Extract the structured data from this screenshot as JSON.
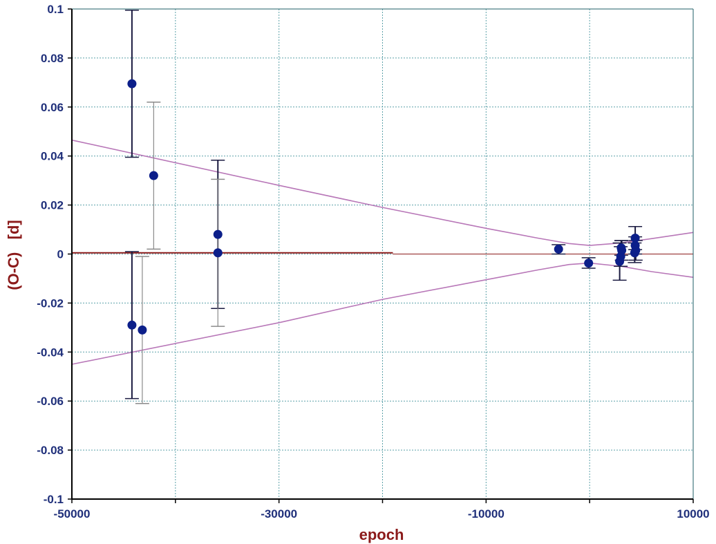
{
  "chart_data": {
    "type": "scatter",
    "xlabel": "epoch",
    "ylabel": "(O-C)   [d]",
    "xlim": [
      -50000,
      10000
    ],
    "ylim": [
      -0.1,
      0.1
    ],
    "xticks": [
      -50000,
      -40000,
      -30000,
      -20000,
      -10000,
      0,
      10000
    ],
    "xtick_labels": [
      "-50000",
      "",
      "-30000",
      "",
      "-10000",
      "",
      "10000"
    ],
    "yticks": [
      -0.1,
      -0.08,
      -0.06,
      -0.04,
      -0.02,
      0,
      0.02,
      0.04,
      0.06,
      0.08,
      0.1
    ],
    "ytick_labels": [
      "-0.1",
      "-0.08",
      "-0.06",
      "-0.04",
      "-0.02",
      "0",
      "0.02",
      "0.04",
      "0.06",
      "0.08",
      "0.1"
    ],
    "grid": true,
    "colors": {
      "points": "#0c1f8a",
      "dark_errorbars": "#1a1a40",
      "light_errorbars": "#8a8a8a",
      "envelope": "#b877b8",
      "zero_line": "#8b1a1a",
      "axis_label": "#8b1a1a",
      "tick_label": "#1f2f7a",
      "grid": "#5aa0a8"
    },
    "points": [
      {
        "x": -44200,
        "y": 0.0695,
        "err_lo": 0.0395,
        "err_hi": 0.0995,
        "bar": "dark"
      },
      {
        "x": -42100,
        "y": 0.032,
        "err_lo": 0.002,
        "err_hi": 0.062,
        "bar": "light"
      },
      {
        "x": -44200,
        "y": -0.029,
        "err_lo": -0.059,
        "err_hi": 0.001,
        "bar": "dark"
      },
      {
        "x": -43200,
        "y": -0.031,
        "err_lo": -0.061,
        "err_hi": -0.001,
        "bar": "light"
      },
      {
        "x": -35900,
        "y": 0.008,
        "err_lo": -0.0222,
        "err_hi": 0.0383,
        "bar": "dark"
      },
      {
        "x": -35900,
        "y": 0.0005,
        "err_lo": -0.0295,
        "err_hi": 0.0305,
        "bar": "light"
      },
      {
        "x": -3000,
        "y": 0.002,
        "err_lo": 0.0,
        "err_hi": 0.0038,
        "bar": "dark"
      },
      {
        "x": -100,
        "y": -0.0037,
        "err_lo": -0.0058,
        "err_hi": -0.0015,
        "bar": "dark"
      },
      {
        "x": 2900,
        "y": -0.003,
        "err_lo": -0.0107,
        "err_hi": 0.0045,
        "bar": "dark"
      },
      {
        "x": 3000,
        "y": -0.001,
        "err_lo": -0.005,
        "err_hi": 0.003,
        "bar": "dark"
      },
      {
        "x": 3100,
        "y": 0.0015,
        "err_lo": -0.0025,
        "err_hi": 0.0055,
        "bar": "dark"
      },
      {
        "x": 3050,
        "y": 0.0025,
        "err_lo": -0.0005,
        "err_hi": 0.0055,
        "bar": "dark"
      },
      {
        "x": 4400,
        "y": 0.0065,
        "err_lo": 0.0018,
        "err_hi": 0.0112,
        "bar": "dark"
      },
      {
        "x": 4400,
        "y": 0.0035,
        "err_lo": 0.0,
        "err_hi": 0.007,
        "bar": "dark"
      },
      {
        "x": 4450,
        "y": 0.0015,
        "err_lo": -0.0025,
        "err_hi": 0.0055,
        "bar": "dark"
      },
      {
        "x": 4350,
        "y": 0.0005,
        "err_lo": -0.0035,
        "err_hi": 0.0045,
        "bar": "dark"
      }
    ],
    "zero_line": [
      {
        "x": [
          -50000,
          -19000
        ],
        "y": [
          0.0005,
          0.0005
        ],
        "weight": "bold"
      },
      {
        "x": [
          -19000,
          10000
        ],
        "y": [
          0.0,
          0.0
        ],
        "weight": "thin"
      }
    ],
    "envelope_upper": [
      {
        "x": -50000,
        "y": 0.0465
      },
      {
        "x": -30000,
        "y": 0.028
      },
      {
        "x": -20000,
        "y": 0.019
      },
      {
        "x": -10000,
        "y": 0.0105
      },
      {
        "x": -5000,
        "y": 0.0065
      },
      {
        "x": -2000,
        "y": 0.0043
      },
      {
        "x": 0,
        "y": 0.0035
      },
      {
        "x": 3000,
        "y": 0.0045
      },
      {
        "x": 6000,
        "y": 0.0063
      },
      {
        "x": 10000,
        "y": 0.0088
      }
    ],
    "envelope_lower": [
      {
        "x": -50000,
        "y": -0.045
      },
      {
        "x": -30000,
        "y": -0.028
      },
      {
        "x": -20000,
        "y": -0.0185
      },
      {
        "x": -10000,
        "y": -0.0105
      },
      {
        "x": -5000,
        "y": -0.0065
      },
      {
        "x": -2000,
        "y": -0.0043
      },
      {
        "x": 0,
        "y": -0.0037
      },
      {
        "x": 3000,
        "y": -0.005
      },
      {
        "x": 6000,
        "y": -0.0072
      },
      {
        "x": 10000,
        "y": -0.0095
      }
    ]
  }
}
